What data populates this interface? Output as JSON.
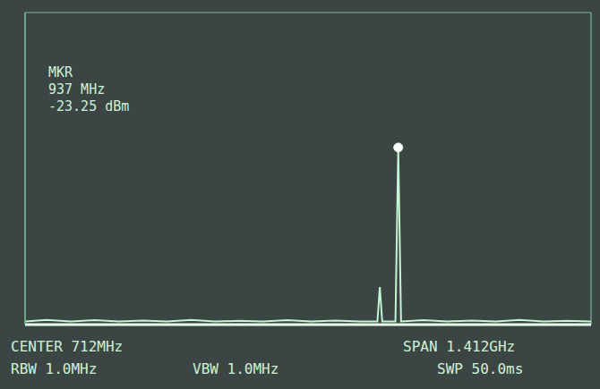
{
  "chart_data": {
    "type": "line",
    "x": [
      6,
      60,
      120,
      180,
      240,
      300,
      360,
      420,
      480,
      540,
      600,
      660,
      720,
      780,
      840,
      885,
      891,
      897,
      930,
      937,
      944,
      1000,
      1060,
      1120,
      1180,
      1240,
      1300,
      1360,
      1418
    ],
    "values": [
      -79,
      -78.5,
      -79,
      -78.6,
      -79,
      -78.7,
      -79,
      -78.5,
      -79,
      -78.8,
      -79,
      -78.6,
      -79,
      -78.7,
      -79,
      -79,
      -68,
      -79,
      -79,
      -23.25,
      -79,
      -78.6,
      -79,
      -78.7,
      -79,
      -78.5,
      -79,
      -78.8,
      -79
    ],
    "color": "#c4f5d2",
    "xlim": [
      6,
      1418
    ],
    "xticks": [
      6,
      147.2,
      288.4,
      429.6,
      570.8,
      712,
      853.2,
      994.4,
      1135.6,
      1276.8,
      1418
    ],
    "ylim": [
      -80,
      20
    ],
    "yticks": [
      -80,
      -70,
      -60,
      -50,
      -40,
      -30,
      -20,
      -10,
      0,
      10,
      20
    ],
    "grid": true,
    "tick_labels": false,
    "annotations": [
      "MKR",
      "937 MHz",
      "-23.25 dBm"
    ],
    "footer": [
      [
        "CENTER 712MHz",
        "SPAN 1.412GHz"
      ],
      [
        "RBW 1.0MHz",
        "VBW 1.0MHz",
        "SWP 50.0ms"
      ]
    ]
  }
}
